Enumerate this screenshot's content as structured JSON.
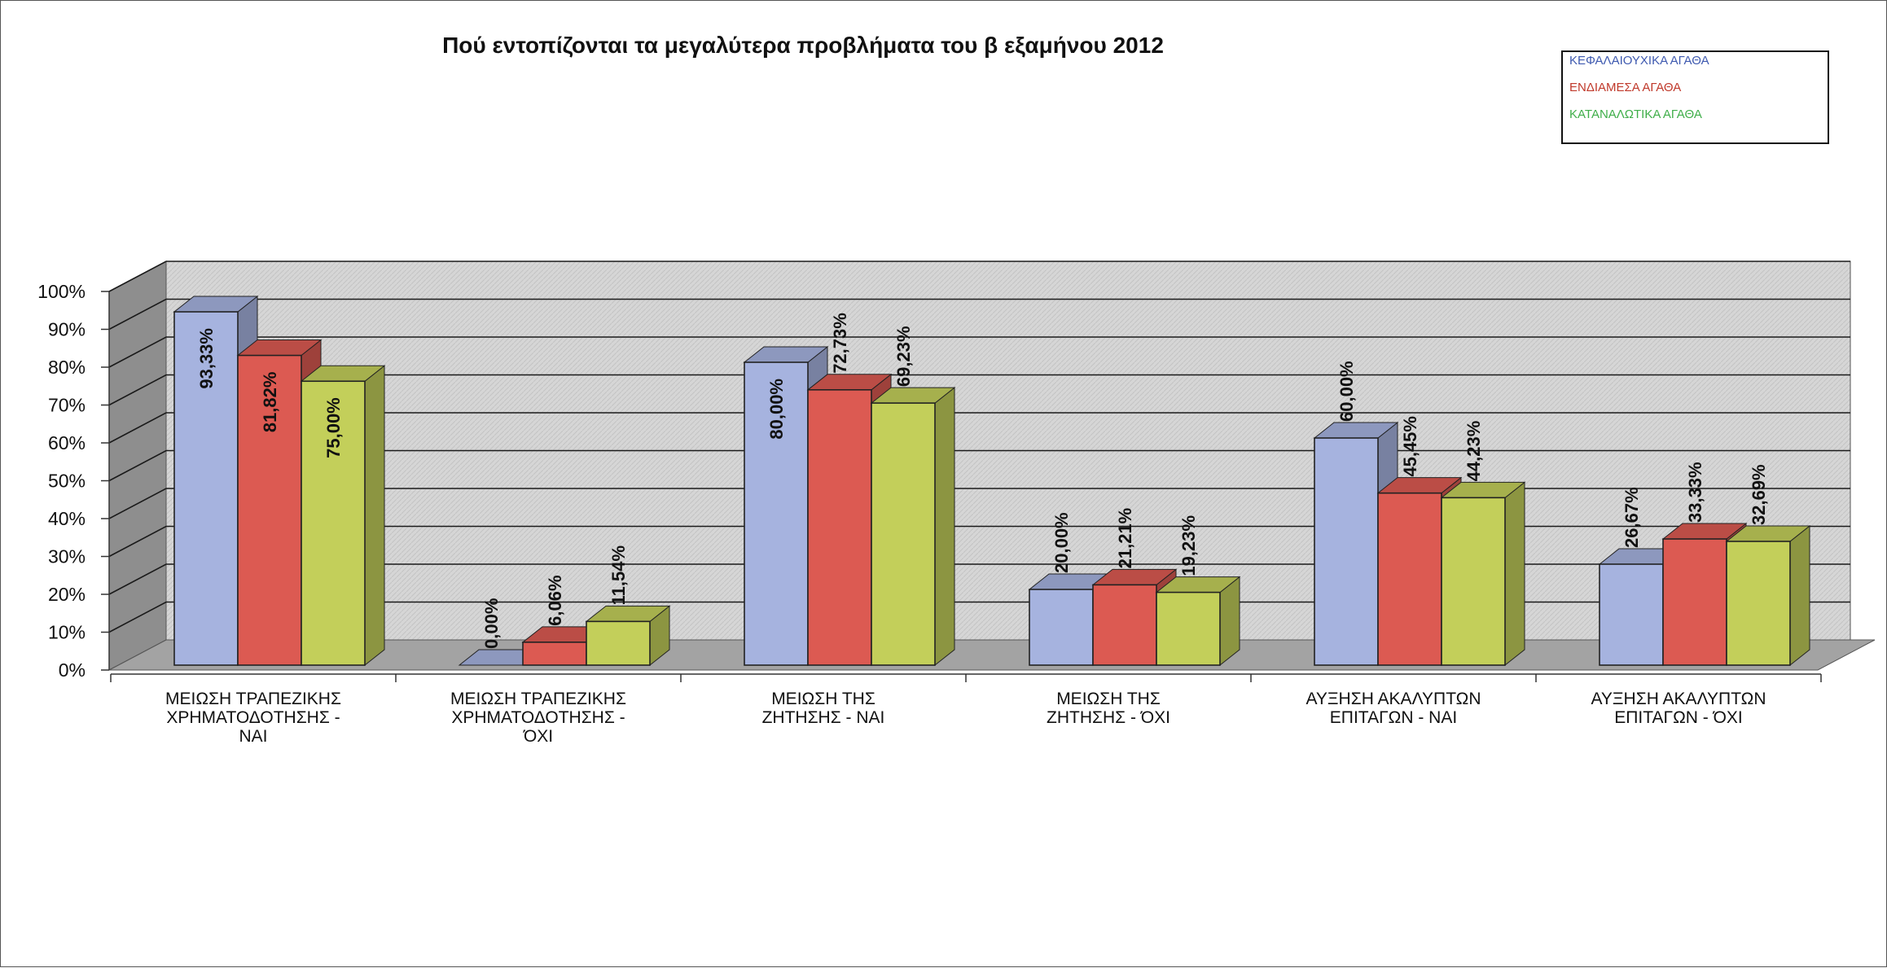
{
  "chart_data": {
    "type": "bar",
    "title": "Πού εντοπίζονται τα μεγαλύτερα προβλήματα του β εξαμήνου 2012",
    "xlabel": "",
    "ylabel": "",
    "ylim": [
      0,
      100
    ],
    "y_ticks": [
      "0%",
      "10%",
      "20%",
      "30%",
      "40%",
      "50%",
      "60%",
      "70%",
      "80%",
      "90%",
      "100%"
    ],
    "grid": true,
    "legend_position": "top-right",
    "categories": [
      [
        "ΜΕΙΩΣΗ ΤΡΑΠΕΖΙΚΗΣ",
        "ΧΡΗΜΑΤΟΔΟΤΗΣΗΣ -",
        "ΝΑΙ"
      ],
      [
        "ΜΕΙΩΣΗ ΤΡΑΠΕΖΙΚΗΣ",
        "ΧΡΗΜΑΤΟΔΟΤΗΣΗΣ -",
        "ΌΧΙ"
      ],
      [
        "ΜΕΙΩΣΗ ΤΗΣ",
        "ΖΗΤΗΣΗΣ - ΝΑΙ"
      ],
      [
        "ΜΕΙΩΣΗ ΤΗΣ",
        "ΖΗΤΗΣΗΣ - ΌΧΙ"
      ],
      [
        "ΑΥΞΗΣΗ ΑΚΑΛΥΠΤΩΝ",
        "ΕΠΙΤΑΓΩΝ - ΝΑΙ"
      ],
      [
        "ΑΥΞΗΣΗ ΑΚΑΛΥΠΤΩΝ",
        "ΕΠΙΤΑΓΩΝ - ΌΧΙ"
      ]
    ],
    "series": [
      {
        "name": "ΚΕΦΑΛΑΙΟΥΧΙΚΑ ΑΓΑΘΑ",
        "color": "#a6b3df",
        "legend_color": "#3f5ab0",
        "values": [
          93.33,
          0.0,
          80.0,
          20.0,
          60.0,
          26.67
        ],
        "labels": [
          "93,33%",
          "0,00%",
          "80,00%",
          "20,00%",
          "60,00%",
          "26,67%"
        ]
      },
      {
        "name": "ΕΝΔΙΑΜΕΣΑ ΑΓΑΘΑ",
        "color": "#dc5a52",
        "legend_color": "#c0392b",
        "values": [
          81.82,
          6.06,
          72.73,
          21.21,
          45.45,
          33.33
        ],
        "labels": [
          "81,82%",
          "6,06%",
          "72,73%",
          "21,21%",
          "45,45%",
          "33,33%"
        ]
      },
      {
        "name": "ΚΑΤΑΝΑΛΩΤΙΚΑ ΑΓΑΘΑ",
        "color": "#c3cf5a",
        "legend_color": "#3fae49",
        "values": [
          75.0,
          11.54,
          69.23,
          19.23,
          44.23,
          32.69
        ],
        "labels": [
          "75,00%",
          "11,54%",
          "69,23%",
          "19,23%",
          "44,23%",
          "32,69%"
        ]
      }
    ]
  }
}
